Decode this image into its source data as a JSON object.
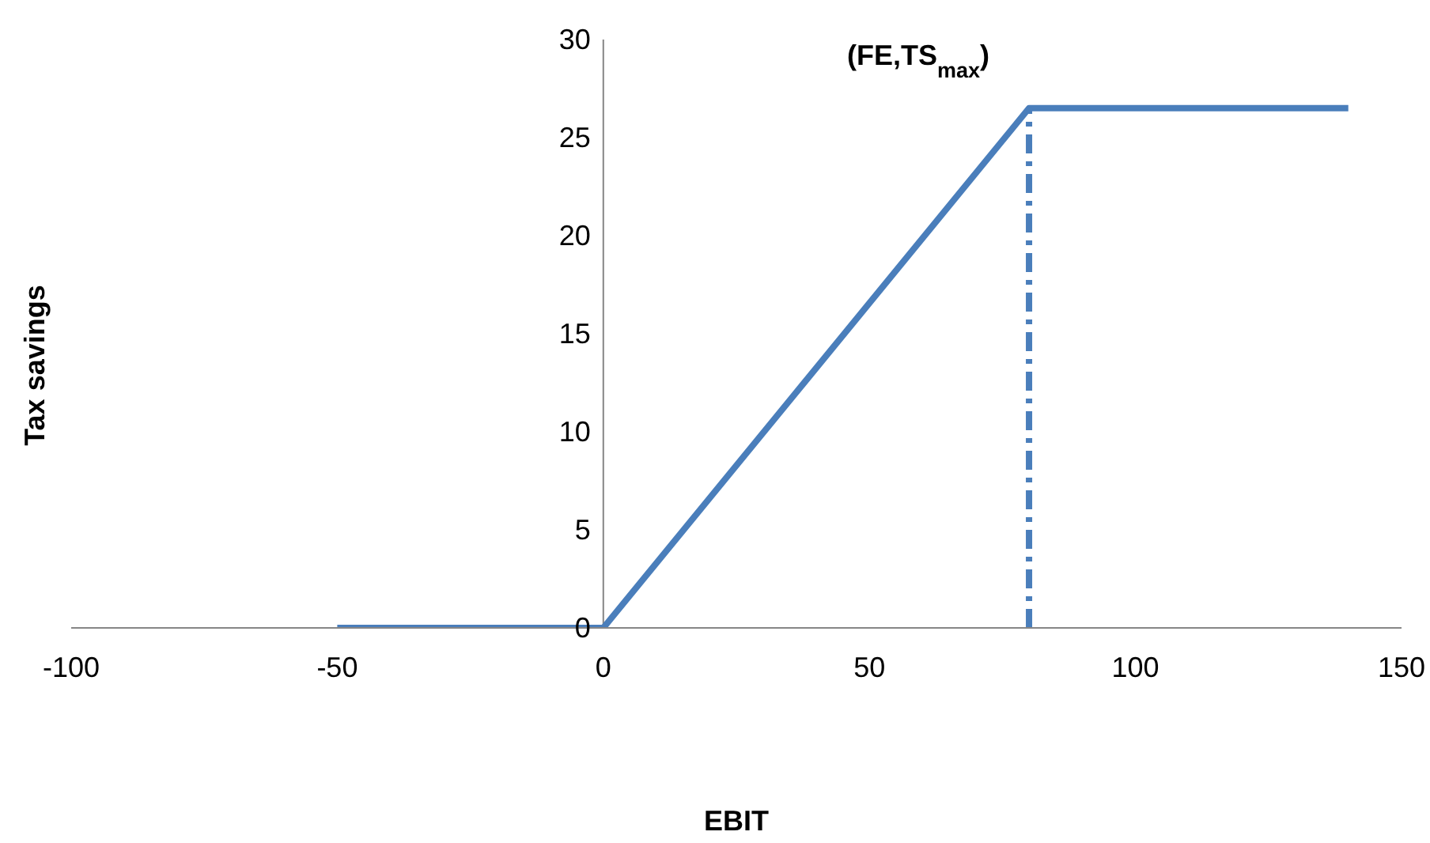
{
  "chart_data": {
    "type": "line",
    "xlabel": "EBIT",
    "ylabel": "Tax savings",
    "annotations": [
      {
        "text": "(FE,TS$_{max}$)",
        "x": 80,
        "y": 26.5
      }
    ],
    "series": [
      {
        "color": "#4a7ebb",
        "x": [
          -50,
          0,
          80,
          140
        ],
        "values": [
          0,
          0,
          26.5,
          26.5
        ],
        "line_style": "solid"
      },
      {
        "color": "#4a7ebb",
        "x": [
          80,
          80
        ],
        "values": [
          0,
          26.5
        ],
        "line_style": "dashed"
      }
    ],
    "xlim": [
      -100,
      150
    ],
    "xticks": [
      -100,
      -50,
      0,
      50,
      100,
      150
    ],
    "ylim": [
      0,
      30
    ],
    "yticks": [
      0,
      5,
      10,
      15,
      20,
      25,
      30
    ],
    "grid": false,
    "marker": "none"
  }
}
